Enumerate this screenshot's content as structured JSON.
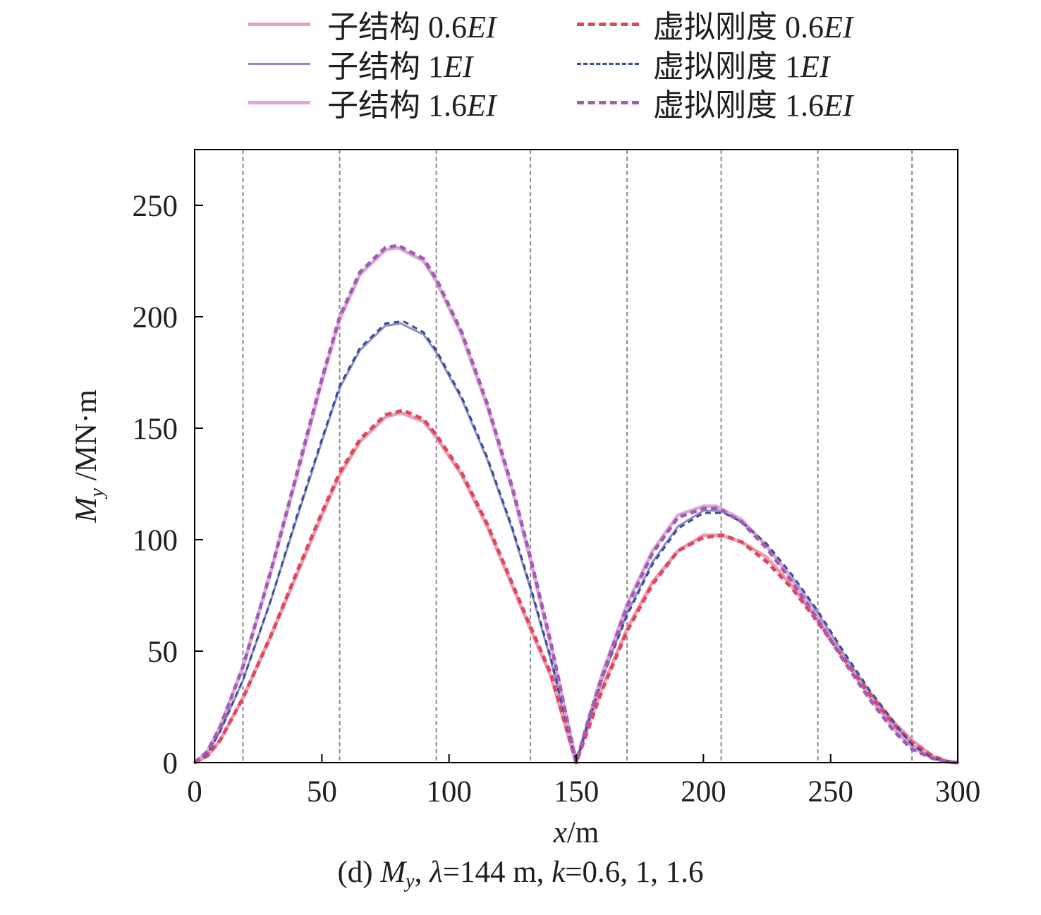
{
  "chart_data": {
    "type": "line",
    "xlabel_var": "x",
    "xlabel_unit": "/m",
    "ylabel_var": "M",
    "ylabel_sub": "y",
    "ylabel_unit": " /MN·m",
    "xlim": [
      0,
      300
    ],
    "ylim": [
      0,
      275
    ],
    "xticks": [
      0,
      50,
      100,
      150,
      200,
      250,
      300
    ],
    "yticks": [
      0,
      50,
      100,
      150,
      200,
      250
    ],
    "vlines": [
      19,
      57,
      95,
      132,
      170,
      207,
      245,
      282
    ],
    "caption": {
      "prefix": "(d) ",
      "var": "M",
      "sub": "y",
      "rest_1": ", ",
      "lambda": "λ",
      "rest_2": "=144 m, ",
      "k": "k",
      "rest_3": "=0.6, 1, 1.6"
    },
    "series": [
      {
        "name": "子结构 0.6EI",
        "label": "子结构 0.6",
        "italic": "EI",
        "color": "#e9a0ae",
        "dash": "solid",
        "width": 5,
        "x": [
          0,
          5,
          10,
          19,
          30,
          40,
          50,
          57,
          65,
          75,
          81,
          90,
          95,
          105,
          115,
          125,
          132,
          140,
          150,
          155,
          160,
          170,
          180,
          190,
          200,
          207,
          215,
          225,
          235,
          245,
          255,
          265,
          275,
          282,
          290,
          296,
          300
        ],
        "y": [
          0,
          3,
          10,
          29,
          57,
          84,
          111,
          129,
          144,
          155,
          157,
          153,
          146,
          129,
          106,
          79,
          60,
          39,
          0,
          17,
          33,
          60,
          81,
          95,
          102,
          102,
          99,
          92,
          79,
          64,
          48,
          32,
          18,
          10,
          3,
          0.5,
          0
        ]
      },
      {
        "name": "子结构 1EI",
        "label": "子结构 1",
        "italic": "EI",
        "color": "#8a8ec8",
        "dash": "solid",
        "width": 3,
        "x": [
          0,
          5,
          10,
          19,
          30,
          40,
          50,
          57,
          65,
          75,
          81,
          90,
          95,
          105,
          115,
          125,
          132,
          140,
          150,
          155,
          160,
          170,
          180,
          190,
          200,
          207,
          215,
          225,
          235,
          245,
          255,
          265,
          275,
          282,
          290,
          296,
          300
        ],
        "y": [
          0,
          4,
          14,
          37,
          73,
          109,
          144,
          168,
          185,
          196,
          197,
          192,
          184,
          163,
          136,
          104,
          78,
          46,
          0,
          19,
          37,
          67,
          90,
          106,
          113,
          113,
          108,
          97,
          83,
          67,
          49,
          32,
          17,
          8,
          2,
          0.4,
          0
        ]
      },
      {
        "name": "子结构 1.6EI",
        "label": "子结构 1.6",
        "italic": "EI",
        "color": "#dca7d8",
        "dash": "solid",
        "width": 5,
        "x": [
          0,
          5,
          10,
          19,
          30,
          40,
          50,
          57,
          65,
          75,
          80,
          90,
          95,
          105,
          115,
          125,
          132,
          140,
          150,
          155,
          160,
          170,
          180,
          190,
          200,
          205,
          215,
          225,
          235,
          245,
          255,
          265,
          275,
          282,
          290,
          296,
          300
        ],
        "y": [
          0,
          5,
          16,
          43,
          86,
          128,
          171,
          199,
          219,
          230,
          231,
          225,
          216,
          192,
          160,
          122,
          91,
          53,
          0,
          20,
          39,
          71,
          95,
          111,
          115,
          115,
          109,
          97,
          82,
          65,
          47,
          30,
          15,
          7,
          2,
          0.3,
          0
        ]
      },
      {
        "name": "虚拟刚度 0.6EI",
        "label": "虚拟刚度 0.6",
        "italic": "EI",
        "color": "#e0475f",
        "dash": "dash",
        "width": 5,
        "x": [
          0,
          5,
          10,
          19,
          30,
          40,
          50,
          57,
          65,
          75,
          82,
          90,
          95,
          105,
          115,
          125,
          132,
          140,
          150,
          155,
          160,
          170,
          180,
          190,
          200,
          208,
          215,
          225,
          235,
          245,
          255,
          265,
          275,
          282,
          290,
          296,
          300
        ],
        "y": [
          0,
          3,
          10,
          29,
          57,
          85,
          112,
          130,
          145,
          156,
          158,
          154,
          147,
          130,
          107,
          80,
          61,
          40,
          0,
          16,
          32,
          59,
          80,
          95,
          101,
          102,
          99,
          90,
          78,
          63,
          47,
          31,
          17,
          9,
          3,
          0.5,
          0
        ]
      },
      {
        "name": "虚拟刚度 1EI",
        "label": "虚拟刚度 1",
        "italic": "EI",
        "color": "#3a4b98",
        "dash": "dash",
        "width": 3,
        "x": [
          0,
          5,
          10,
          19,
          30,
          40,
          50,
          57,
          65,
          75,
          82,
          90,
          95,
          105,
          115,
          125,
          132,
          140,
          150,
          155,
          160,
          170,
          180,
          190,
          200,
          208,
          215,
          225,
          235,
          245,
          255,
          265,
          275,
          282,
          290,
          296,
          300
        ],
        "y": [
          0,
          4,
          14,
          37,
          73,
          110,
          145,
          169,
          186,
          197,
          198,
          193,
          185,
          164,
          137,
          105,
          79,
          47,
          0,
          19,
          37,
          66,
          89,
          105,
          112,
          112,
          108,
          98,
          84,
          68,
          50,
          33,
          18,
          8,
          2,
          0.4,
          0
        ]
      },
      {
        "name": "虚拟刚度 1.6EI",
        "label": "虚拟刚度 1.6",
        "italic": "EI",
        "color": "#a45bb5",
        "dash": "dash",
        "width": 5,
        "x": [
          0,
          5,
          10,
          19,
          30,
          40,
          50,
          57,
          65,
          75,
          80,
          90,
          95,
          105,
          115,
          125,
          132,
          140,
          150,
          155,
          160,
          170,
          180,
          190,
          200,
          206,
          215,
          225,
          235,
          245,
          255,
          265,
          275,
          282,
          290,
          296,
          300
        ],
        "y": [
          0,
          5,
          16,
          43,
          86,
          129,
          172,
          200,
          220,
          231,
          232,
          226,
          217,
          193,
          161,
          123,
          92,
          54,
          0,
          20,
          38,
          70,
          94,
          110,
          114,
          114,
          108,
          96,
          81,
          64,
          46,
          29,
          14,
          6,
          2,
          0.3,
          0
        ]
      }
    ]
  }
}
